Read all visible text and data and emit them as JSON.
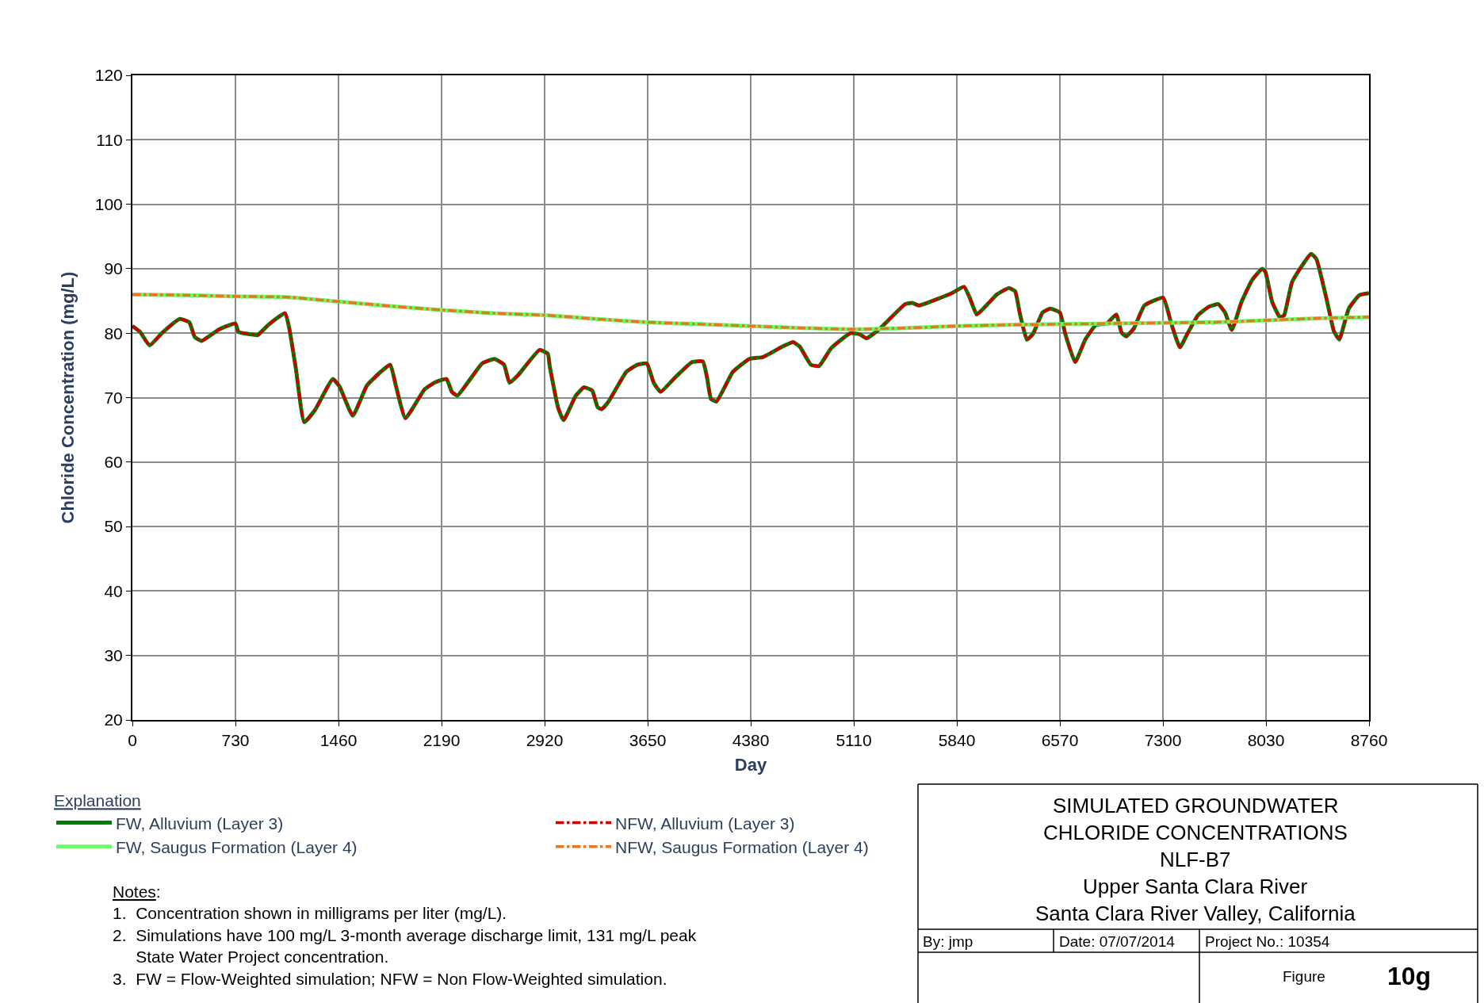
{
  "chart_data": {
    "type": "line",
    "title": "SIMULATED GROUNDWATER\nCHLORIDE CONCENTRATIONS",
    "subtitle": "NLF-B7\nUpper Santa Clara River\nSanta Clara River Valley, California",
    "xlabel": "Day",
    "ylabel": "Chloride Concentration (mg/L)",
    "legend_title": "Explanation",
    "xlim": [
      0,
      8760
    ],
    "xticks": [
      0,
      730,
      1460,
      2190,
      2920,
      3650,
      4380,
      5110,
      5840,
      6570,
      7300,
      8030,
      8760
    ],
    "ylim": [
      20,
      120
    ],
    "yticks": [
      20,
      30,
      40,
      50,
      60,
      70,
      80,
      90,
      100,
      110,
      120
    ],
    "grid": true,
    "legend": "bottom left",
    "marker": "none",
    "series": [
      {
        "name": "FW, Alluvium (Layer 3)",
        "color": "#008000",
        "line_style": "solid",
        "x": [
          0,
          54,
          122,
          209,
          335,
          403,
          442,
          490,
          616,
          730,
          751,
          848,
          887,
          964,
          1081,
          1110,
          1158,
          1217,
          1294,
          1420,
          1468,
          1561,
          1662,
          1759,
          1827,
          1866,
          1934,
          2070,
          2147,
          2225,
          2263,
          2302,
          2477,
          2565,
          2633,
          2671,
          2729,
          2884,
          2943,
          2956,
          3015,
          3054,
          3141,
          3199,
          3257,
          3296,
          3325,
          3373,
          3499,
          3576,
          3644,
          3693,
          3741,
          3848,
          3964,
          4041,
          4070,
          4099,
          4138,
          4254,
          4370,
          4467,
          4603,
          4680,
          4728,
          4806,
          4864,
          4951,
          5087,
          5155,
          5199,
          5290,
          5474,
          5523,
          5571,
          5726,
          5804,
          5891,
          5935,
          5981,
          6066,
          6123,
          6209,
          6253,
          6285,
          6336,
          6380,
          6447,
          6503,
          6570,
          6608,
          6678,
          6750,
          6826,
          6903,
          6969,
          7007,
          7040,
          7093,
          7169,
          7302,
          7359,
          7420,
          7473,
          7549,
          7625,
          7692,
          7740,
          7788,
          7854,
          7930,
          8003,
          8026,
          8073,
          8130,
          8159,
          8216,
          8349,
          8387,
          8463,
          8511,
          8549,
          8616,
          8692,
          8760
        ],
        "values": [
          81.1,
          80.2,
          78.1,
          80,
          82.2,
          81.7,
          79.4,
          78.8,
          80.6,
          81.5,
          80.2,
          79.8,
          79.7,
          81.3,
          83.1,
          80.9,
          74.5,
          66.2,
          68.1,
          72.9,
          71.7,
          67.2,
          71.9,
          74,
          75.1,
          71.9,
          66.8,
          71.3,
          72.4,
          72.9,
          70.9,
          70.3,
          75.3,
          76,
          75.1,
          72.3,
          73.4,
          77.4,
          76.8,
          74.9,
          68.5,
          66.5,
          70.3,
          71.6,
          71.1,
          68.5,
          68.2,
          69.4,
          74,
          75.1,
          75.3,
          72.3,
          70.9,
          73.2,
          75.5,
          75.6,
          73.2,
          69.8,
          69.4,
          74,
          76,
          76.3,
          77.9,
          78.6,
          77.9,
          75.1,
          74.9,
          77.7,
          80,
          79.8,
          79.2,
          80.6,
          84.5,
          84.7,
          84.3,
          85.5,
          86.2,
          87.2,
          85.3,
          82.9,
          84.7,
          86,
          87,
          86.5,
          83.2,
          79,
          79.9,
          83.2,
          83.8,
          83.2,
          79.9,
          75.5,
          79,
          81.3,
          81.5,
          82.9,
          80.1,
          79.5,
          80.7,
          84.3,
          85.5,
          81.5,
          77.8,
          79.9,
          82.8,
          84.1,
          84.5,
          83.2,
          80.5,
          84.7,
          88.2,
          90,
          89.5,
          84.9,
          82.4,
          82.8,
          88,
          92.3,
          91.5,
          84.9,
          80.3,
          79,
          83.8,
          85.9,
          86.2
        ]
      },
      {
        "name": "NFW, Alluvium (Layer 3)",
        "color": "#cc0000",
        "line_style": "dashed",
        "x": [
          0,
          54,
          122,
          209,
          335,
          403,
          442,
          490,
          616,
          730,
          751,
          848,
          887,
          964,
          1081,
          1110,
          1158,
          1217,
          1294,
          1420,
          1468,
          1561,
          1662,
          1759,
          1827,
          1866,
          1934,
          2070,
          2147,
          2225,
          2263,
          2302,
          2477,
          2565,
          2633,
          2671,
          2729,
          2884,
          2943,
          2956,
          3015,
          3054,
          3141,
          3199,
          3257,
          3296,
          3325,
          3373,
          3499,
          3576,
          3644,
          3693,
          3741,
          3848,
          3964,
          4041,
          4070,
          4099,
          4138,
          4254,
          4370,
          4467,
          4603,
          4680,
          4728,
          4806,
          4864,
          4951,
          5087,
          5155,
          5199,
          5290,
          5474,
          5523,
          5571,
          5726,
          5804,
          5891,
          5935,
          5981,
          6066,
          6123,
          6209,
          6253,
          6285,
          6336,
          6380,
          6447,
          6503,
          6570,
          6608,
          6678,
          6750,
          6826,
          6903,
          6969,
          7007,
          7040,
          7093,
          7169,
          7302,
          7359,
          7420,
          7473,
          7549,
          7625,
          7692,
          7740,
          7788,
          7854,
          7930,
          8003,
          8026,
          8073,
          8130,
          8159,
          8216,
          8349,
          8387,
          8463,
          8511,
          8549,
          8616,
          8692,
          8760
        ],
        "values": [
          81.1,
          80.2,
          78.1,
          80,
          82.2,
          81.7,
          79.4,
          78.8,
          80.6,
          81.5,
          80.2,
          79.8,
          79.7,
          81.3,
          83.1,
          80.9,
          74.5,
          66.2,
          68.1,
          72.9,
          71.7,
          67.2,
          71.9,
          74,
          75.1,
          71.9,
          66.8,
          71.3,
          72.4,
          72.9,
          70.9,
          70.3,
          75.3,
          76,
          75.1,
          72.3,
          73.4,
          77.4,
          76.8,
          74.9,
          68.5,
          66.5,
          70.3,
          71.6,
          71.1,
          68.5,
          68.2,
          69.4,
          74,
          75.1,
          75.3,
          72.3,
          70.9,
          73.2,
          75.5,
          75.6,
          73.2,
          69.8,
          69.4,
          74,
          76,
          76.3,
          77.9,
          78.6,
          77.9,
          75.1,
          74.9,
          77.7,
          80,
          79.8,
          79.2,
          80.6,
          84.5,
          84.7,
          84.3,
          85.5,
          86.2,
          87.2,
          85.3,
          82.9,
          84.7,
          86,
          87,
          86.5,
          83.2,
          79,
          79.9,
          83.2,
          83.8,
          83.2,
          79.9,
          75.5,
          79,
          81.3,
          81.5,
          82.9,
          80.1,
          79.5,
          80.7,
          84.3,
          85.5,
          81.5,
          77.8,
          79.9,
          82.8,
          84.1,
          84.5,
          83.2,
          80.5,
          84.7,
          88.2,
          90,
          89.5,
          84.9,
          82.4,
          82.8,
          88,
          92.3,
          91.5,
          84.9,
          80.3,
          79,
          83.8,
          85.9,
          86.2
        ]
      },
      {
        "name": "FW, Saugus Formation (Layer 4)",
        "color": "#66ff66",
        "line_style": "solid",
        "x": [
          0,
          365,
          730,
          1095,
          1460,
          1825,
          2190,
          2555,
          2920,
          3285,
          3650,
          4015,
          4380,
          4745,
          5110,
          5475,
          5840,
          6205,
          6570,
          6935,
          7300,
          7665,
          8030,
          8395,
          8760
        ],
        "values": [
          86,
          85.9,
          85.7,
          85.6,
          84.9,
          84.2,
          83.6,
          83.1,
          82.8,
          82.2,
          81.7,
          81.4,
          81.1,
          80.8,
          80.6,
          80.8,
          81.1,
          81.3,
          81.4,
          81.5,
          81.6,
          81.7,
          82,
          82.3,
          82.5
        ]
      },
      {
        "name": "NFW, Saugus Formation (Layer 4)",
        "color": "#e87722",
        "line_style": "dashed",
        "x": [
          0,
          365,
          730,
          1095,
          1460,
          1825,
          2190,
          2555,
          2920,
          3285,
          3650,
          4015,
          4380,
          4745,
          5110,
          5475,
          5840,
          6205,
          6570,
          6935,
          7300,
          7665,
          8030,
          8395,
          8760
        ],
        "values": [
          86,
          85.9,
          85.7,
          85.6,
          84.9,
          84.2,
          83.6,
          83.1,
          82.8,
          82.2,
          81.7,
          81.4,
          81.1,
          80.8,
          80.6,
          80.8,
          81.1,
          81.3,
          81.4,
          81.5,
          81.6,
          81.7,
          82,
          82.3,
          82.5
        ]
      }
    ],
    "annotations": [
      "Notes:",
      "1.  Concentration shown in milligrams per liter (mg/L).",
      "2.  Simulations have 100 mg/L 3-month average discharge limit, 131 mg/L peak\n     State Water Project concentration.",
      "3.  FW = Flow-Weighted simulation; NFW = Non Flow-Weighted simulation.",
      "By: jmp",
      "Date: 07/07/2014",
      "Project No.: 10354",
      "Figure",
      "10g"
    ]
  }
}
